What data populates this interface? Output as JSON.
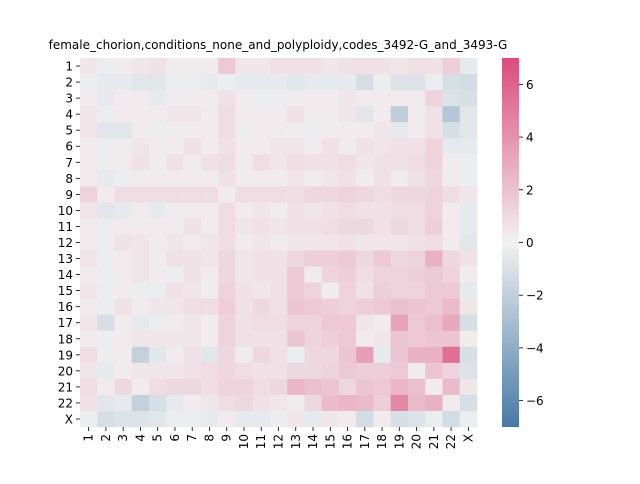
{
  "chart_data": {
    "type": "heatmap",
    "title": "female_chorion,conditions_none_and_polyploidy,codes_3492-G_and_3493-G",
    "xlabel": "",
    "ylabel": "",
    "row_labels": [
      "1",
      "2",
      "3",
      "4",
      "5",
      "6",
      "7",
      "8",
      "9",
      "10",
      "11",
      "12",
      "13",
      "14",
      "15",
      "16",
      "17",
      "18",
      "19",
      "20",
      "21",
      "22",
      "X"
    ],
    "col_labels": [
      "1",
      "2",
      "3",
      "4",
      "5",
      "6",
      "7",
      "8",
      "9",
      "10",
      "11",
      "12",
      "13",
      "14",
      "15",
      "16",
      "17",
      "18",
      "19",
      "20",
      "21",
      "22",
      "X"
    ],
    "colorbar": {
      "vmin": -7,
      "vmax": 7,
      "ticks": [
        -6,
        -4,
        -2,
        0,
        2,
        4,
        6
      ],
      "tick_labels": [
        "−6",
        "−4",
        "−2",
        "0",
        "2",
        "4",
        "6"
      ],
      "colors": {
        "negative": "#4679a5",
        "center": "#f2f2f2",
        "positive": "#db4b7b"
      }
    },
    "values": [
      [
        0.5,
        -0.3,
        0.3,
        0.5,
        0.7,
        0.3,
        0.3,
        0.3,
        1.7,
        0.5,
        0.5,
        0.7,
        0.7,
        0.7,
        0.5,
        0.7,
        0.7,
        0.7,
        0.5,
        0.7,
        0.7,
        1.5,
        -0.5
      ],
      [
        -0.3,
        -0.5,
        -0.5,
        -0.7,
        -0.7,
        -0.3,
        -0.3,
        -0.5,
        -0.3,
        -0.5,
        -0.5,
        -0.5,
        -0.7,
        -0.5,
        -0.5,
        -0.5,
        -1.2,
        -0.3,
        -0.9,
        -0.9,
        -0.3,
        -1.1,
        -1.3
      ],
      [
        0.3,
        -0.5,
        0.3,
        0.3,
        -0.5,
        0.3,
        0.3,
        0.3,
        0.7,
        0.3,
        -0.3,
        -0.3,
        0.3,
        0.3,
        0.3,
        0.5,
        0.3,
        0.3,
        0.3,
        0.3,
        1.3,
        -0.9,
        -1.1
      ],
      [
        0.5,
        -0.3,
        0.3,
        0.3,
        0.3,
        0.5,
        0.5,
        0.3,
        0.9,
        0.3,
        0.3,
        0.3,
        0.7,
        0.3,
        0.3,
        0.5,
        -0.7,
        0.3,
        -2.1,
        0.3,
        0.7,
        -2.5,
        -0.7
      ],
      [
        0.5,
        -0.7,
        -0.7,
        0.3,
        -0.3,
        0.3,
        0.3,
        0.3,
        0.9,
        -0.3,
        0.3,
        0.3,
        0.3,
        -0.3,
        0.3,
        0.3,
        0.3,
        0.5,
        -0.5,
        0.3,
        0.7,
        -1.1,
        -0.7
      ],
      [
        0.3,
        -0.3,
        0.3,
        0.5,
        0.3,
        0.3,
        0.7,
        0.3,
        0.7,
        0.3,
        0.3,
        0.5,
        0.5,
        0.3,
        0.7,
        0.3,
        0.7,
        0.5,
        0.7,
        0.7,
        1.3,
        -0.5,
        -0.5
      ],
      [
        0.3,
        -0.3,
        0.3,
        0.7,
        0.3,
        0.7,
        0.3,
        0.7,
        0.9,
        0.3,
        0.9,
        0.5,
        0.9,
        0.7,
        0.7,
        0.9,
        0.5,
        0.7,
        0.7,
        0.9,
        1.3,
        0.3,
        -0.3
      ],
      [
        0.3,
        -0.5,
        -0.3,
        0.3,
        0.3,
        0.3,
        0.3,
        0.3,
        0.7,
        0.3,
        0.3,
        0.3,
        0.5,
        0.3,
        0.5,
        0.7,
        0.3,
        0.7,
        0.3,
        0.7,
        1.1,
        0.3,
        -0.3
      ],
      [
        1.3,
        0.3,
        0.9,
        0.9,
        0.9,
        0.9,
        0.9,
        0.9,
        0.3,
        0.9,
        0.9,
        0.9,
        0.9,
        1.1,
        1.1,
        1.3,
        1.1,
        0.9,
        1.1,
        1.1,
        1.3,
        0.9,
        0.5
      ],
      [
        0.5,
        -0.7,
        -0.5,
        0.3,
        -0.5,
        0.3,
        0.3,
        0.3,
        0.9,
        0.3,
        0.5,
        0.3,
        0.7,
        0.5,
        0.7,
        0.9,
        0.7,
        0.7,
        0.9,
        0.9,
        1.3,
        0.3,
        -0.5
      ],
      [
        0.3,
        -0.3,
        0.3,
        0.3,
        0.3,
        0.3,
        0.7,
        0.3,
        0.9,
        0.5,
        0.7,
        0.5,
        0.7,
        0.7,
        0.9,
        1.1,
        1.1,
        0.7,
        1.1,
        0.9,
        1.5,
        0.3,
        -0.5
      ],
      [
        0.3,
        -0.3,
        0.7,
        0.5,
        0.3,
        0.5,
        0.3,
        0.5,
        0.9,
        0.3,
        0.5,
        0.3,
        0.5,
        0.5,
        0.5,
        0.7,
        0.5,
        0.5,
        0.5,
        0.7,
        0.9,
        0.3,
        -0.7
      ],
      [
        0.5,
        -0.3,
        0.3,
        0.5,
        0.3,
        0.7,
        0.7,
        0.5,
        1.1,
        0.5,
        0.7,
        0.7,
        1.1,
        1.5,
        1.5,
        1.7,
        1.1,
        1.7,
        1.1,
        1.3,
        2.7,
        1.1,
        0.7
      ],
      [
        0.3,
        -0.3,
        0.3,
        0.5,
        0.3,
        -0.3,
        0.7,
        0.3,
        1.1,
        0.5,
        0.7,
        0.7,
        1.7,
        0.3,
        1.3,
        1.5,
        0.9,
        1.3,
        1.3,
        1.5,
        1.7,
        1.3,
        0.3
      ],
      [
        0.5,
        -0.3,
        0.3,
        -0.3,
        -0.3,
        0.7,
        0.5,
        0.3,
        1.3,
        0.7,
        0.5,
        0.7,
        1.7,
        1.3,
        0.3,
        1.3,
        0.7,
        1.5,
        1.3,
        1.3,
        1.7,
        1.7,
        -0.5
      ],
      [
        0.3,
        -0.3,
        0.7,
        0.3,
        0.5,
        0.5,
        0.9,
        0.9,
        1.5,
        0.7,
        1.1,
        0.7,
        1.9,
        1.7,
        1.5,
        1.3,
        1.5,
        1.7,
        2.1,
        1.9,
        1.7,
        2.3,
        0.5
      ],
      [
        0.5,
        -1.1,
        0.3,
        -0.5,
        -0.3,
        0.3,
        0.5,
        0.3,
        1.3,
        0.7,
        0.9,
        0.9,
        1.3,
        1.3,
        1.7,
        1.7,
        0.5,
        0.3,
        3.3,
        1.7,
        2.1,
        3.1,
        -1.1
      ],
      [
        0.3,
        -0.3,
        0.3,
        0.5,
        0.5,
        0.5,
        0.5,
        0.3,
        1.3,
        0.7,
        0.7,
        0.7,
        1.9,
        1.3,
        1.5,
        1.7,
        0.3,
        0.5,
        1.9,
        1.7,
        1.9,
        1.9,
        0.3
      ],
      [
        0.9,
        -0.3,
        0.3,
        -1.9,
        -0.7,
        0.3,
        0.7,
        -0.7,
        1.1,
        0.3,
        1.1,
        0.7,
        -0.3,
        1.1,
        1.1,
        1.9,
        3.5,
        -0.5,
        1.9,
        2.7,
        2.7,
        5.5,
        -1.1
      ],
      [
        0.5,
        -0.5,
        0.3,
        0.5,
        0.5,
        0.5,
        0.7,
        0.9,
        1.1,
        0.9,
        0.7,
        0.7,
        1.1,
        1.1,
        1.3,
        1.7,
        1.5,
        1.5,
        1.7,
        0.3,
        1.9,
        1.3,
        -0.9
      ],
      [
        0.9,
        0.3,
        1.1,
        0.3,
        0.9,
        1.1,
        1.1,
        0.9,
        1.3,
        1.3,
        0.9,
        1.1,
        2.5,
        2.1,
        1.9,
        1.1,
        1.9,
        1.7,
        2.5,
        2.1,
        0.3,
        2.3,
        0.5
      ],
      [
        0.7,
        -0.7,
        -0.5,
        -1.9,
        -1.1,
        -0.5,
        0.3,
        0.5,
        0.9,
        1.1,
        0.7,
        0.5,
        0.3,
        1.1,
        2.3,
        2.5,
        2.3,
        1.5,
        4.5,
        2.3,
        2.7,
        0.3,
        -1.1
      ],
      [
        -0.3,
        -1.1,
        -0.9,
        -0.9,
        -0.7,
        -0.3,
        -0.3,
        -0.5,
        0.3,
        -0.5,
        -0.5,
        -0.3,
        0.5,
        -0.5,
        0.5,
        0.3,
        -1.3,
        0.3,
        -1.1,
        -0.9,
        -0.3,
        -1.3,
        -0.3
      ]
    ]
  }
}
